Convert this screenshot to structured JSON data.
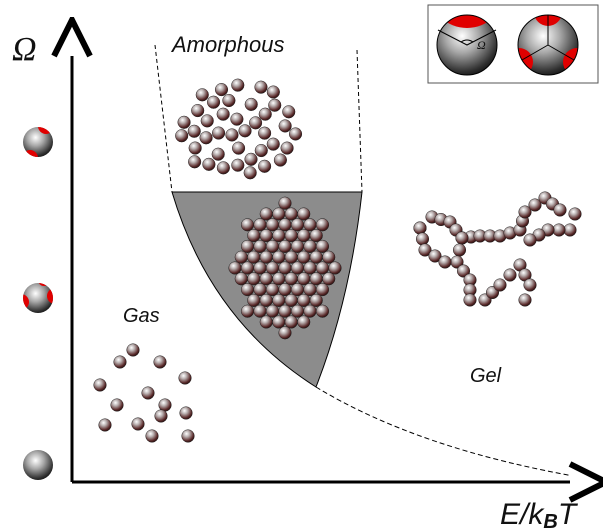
{
  "axes": {
    "y_label": "Ω",
    "x_label": {
      "main": "E/k",
      "sub": "B",
      "tail": "T"
    }
  },
  "regions": {
    "amorphous": "Amorphous",
    "gas": "Gas",
    "gel": "Gel"
  },
  "inset": {
    "angle_label": "Ω"
  }
}
